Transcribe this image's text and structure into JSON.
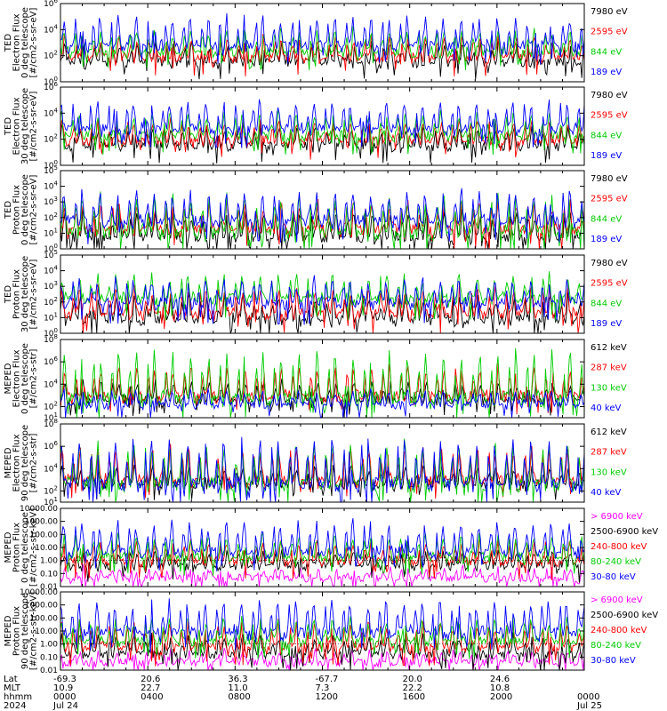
{
  "chart_data": [
    {
      "type": "line",
      "ylabel": [
        "TED",
        "Electron Flux",
        "0 deg telescope",
        "[#/cm2-s-sr-eV]"
      ],
      "yscale": "log",
      "ylim": [
        1,
        1000000
      ],
      "yticks": [
        "10^0",
        "10^2",
        "10^4",
        "10^6"
      ],
      "series": [
        {
          "name": "7980 eV",
          "color": "#000000",
          "base": 20,
          "peak": 1000
        },
        {
          "name": "2595 eV",
          "color": "#ff0000",
          "base": 40,
          "peak": 3000
        },
        {
          "name": "844 eV",
          "color": "#00cc00",
          "base": 100,
          "peak": 10000
        },
        {
          "name": "189 eV",
          "color": "#0000ff",
          "base": 300,
          "peak": 100000
        }
      ]
    },
    {
      "type": "line",
      "ylabel": [
        "TED",
        "Electron Flux",
        "30 deg telescope",
        "[#/cm2-s-sr-eV]"
      ],
      "yscale": "log",
      "ylim": [
        1,
        1000000
      ],
      "yticks": [
        "10^0",
        "10^2",
        "10^4",
        "10^6"
      ],
      "series": [
        {
          "name": "7980 eV",
          "color": "#000000",
          "base": 20,
          "peak": 1000
        },
        {
          "name": "2595 eV",
          "color": "#ff0000",
          "base": 40,
          "peak": 3000
        },
        {
          "name": "844 eV",
          "color": "#00cc00",
          "base": 100,
          "peak": 10000
        },
        {
          "name": "189 eV",
          "color": "#0000ff",
          "base": 300,
          "peak": 100000
        }
      ]
    },
    {
      "type": "line",
      "ylabel": [
        "TED",
        "Proton Flux",
        "0 deg telescope",
        "[#/cm2-s-sr-eV]"
      ],
      "yscale": "log",
      "ylim": [
        1,
        100000
      ],
      "yticks": [
        "10^0",
        "10^1",
        "10^2",
        "10^3",
        "10^4",
        "10^5"
      ],
      "series": [
        {
          "name": "7980 eV",
          "color": "#000000",
          "base": 3,
          "peak": 300
        },
        {
          "name": "2595 eV",
          "color": "#ff0000",
          "base": 10,
          "peak": 1000
        },
        {
          "name": "844 eV",
          "color": "#00cc00",
          "base": 5,
          "peak": 3000
        },
        {
          "name": "189 eV",
          "color": "#0000ff",
          "base": 30,
          "peak": 5000
        }
      ]
    },
    {
      "type": "line",
      "ylabel": [
        "TED",
        "Proton Flux",
        "30 deg telescope",
        "[#/cm2-s-sr-eV]"
      ],
      "yscale": "log",
      "ylim": [
        1,
        100000
      ],
      "yticks": [
        "10^0",
        "10^1",
        "10^2",
        "10^3",
        "10^4",
        "10^5"
      ],
      "series": [
        {
          "name": "7980 eV",
          "color": "#000000",
          "base": 5,
          "peak": 300
        },
        {
          "name": "2595 eV",
          "color": "#ff0000",
          "base": 10,
          "peak": 1000
        },
        {
          "name": "844 eV",
          "color": "#00cc00",
          "base": 100,
          "peak": 5000
        },
        {
          "name": "189 eV",
          "color": "#0000ff",
          "base": 50,
          "peak": 3000
        }
      ]
    },
    {
      "type": "line",
      "ylabel": [
        "MEPED",
        "Electron Flux",
        "0 deg telescope",
        "[#/cm2-s-str]"
      ],
      "yscale": "log",
      "ylim": [
        10,
        100000000
      ],
      "yticks": [
        "10^1",
        "10^2",
        "10^4",
        "10^6",
        "10^8"
      ],
      "series": [
        {
          "name": "612 keV",
          "color": "#000000",
          "base": 200,
          "peak": 20000
        },
        {
          "name": "287 keV",
          "color": "#ff0000",
          "base": 300,
          "peak": 500000
        },
        {
          "name": "130 keV",
          "color": "#00cc00",
          "base": 100,
          "peak": 10000000
        },
        {
          "name": "40 keV",
          "color": "#0000ff",
          "base": 100,
          "peak": 3000
        }
      ]
    },
    {
      "type": "line",
      "ylabel": [
        "MEPED",
        "Electron Flux",
        "90 deg telescope",
        "[#/cm2-s-str]"
      ],
      "yscale": "log",
      "ylim": [
        10,
        100000000
      ],
      "yticks": [
        "10^1",
        "10^2",
        "10^4",
        "10^6",
        "10^8"
      ],
      "series": [
        {
          "name": "612 keV",
          "color": "#000000",
          "base": 200,
          "peak": 20000
        },
        {
          "name": "287 keV",
          "color": "#ff0000",
          "base": 300,
          "peak": 1000000
        },
        {
          "name": "130 keV",
          "color": "#00cc00",
          "base": 100,
          "peak": 3000000
        },
        {
          "name": "40 keV",
          "color": "#0000ff",
          "base": 100,
          "peak": 5000000
        }
      ]
    },
    {
      "type": "line",
      "ylabel": [
        "MEPED",
        "Proton Flux",
        "0 deg telescope",
        "[#/cm2-s-str-keV]"
      ],
      "yscale": "log",
      "ylim": [
        0.01,
        10000
      ],
      "yticks": [
        "0.01",
        "0.10",
        "1.00",
        "10.00",
        "100.00",
        "1000.00",
        "10000.00"
      ],
      "series": [
        {
          "name": "> 6900 keV",
          "color": "#ff00ff",
          "base": 0.03,
          "peak": 0.3
        },
        {
          "name": "2500-6900 keV",
          "color": "#000000",
          "base": 0.3,
          "peak": 5
        },
        {
          "name": "240-800 keV",
          "color": "#ff0000",
          "base": 0.5,
          "peak": 30
        },
        {
          "name": "80-240 keV",
          "color": "#00cc00",
          "base": 1,
          "peak": 100
        },
        {
          "name": "30-80 keV",
          "color": "#0000ff",
          "base": 2,
          "peak": 1000
        }
      ]
    },
    {
      "type": "line",
      "ylabel": [
        "MEPED",
        "Proton Flux",
        "90 deg telescope",
        "[#/cm2-s-str-keV]"
      ],
      "yscale": "log",
      "ylim": [
        0.01,
        10000
      ],
      "yticks": [
        "0.01",
        "0.10",
        "1.00",
        "10.00",
        "100.00",
        "1000.00",
        "10000.00"
      ],
      "series": [
        {
          "name": "> 6900 keV",
          "color": "#ff00ff",
          "base": 0.03,
          "peak": 0.3
        },
        {
          "name": "2500-6900 keV",
          "color": "#000000",
          "base": 0.1,
          "peak": 5
        },
        {
          "name": "240-800 keV",
          "color": "#ff0000",
          "base": 0.3,
          "peak": 50
        },
        {
          "name": "80-240 keV",
          "color": "#00cc00",
          "base": 1,
          "peak": 100
        },
        {
          "name": "30-80 keV",
          "color": "#0000ff",
          "base": 3,
          "peak": 3000
        }
      ]
    }
  ],
  "footer": {
    "row_labels": [
      "Lat",
      "MLT",
      "hhmm",
      "2024"
    ],
    "columns": [
      {
        "lat": "-69.3",
        "mlt": "10.9",
        "hhmm": "0000",
        "date": "Jul 24"
      },
      {
        "lat": "20.6",
        "mlt": "22.7",
        "hhmm": "0400",
        "date": ""
      },
      {
        "lat": "36.3",
        "mlt": "11.0",
        "hhmm": "0800",
        "date": ""
      },
      {
        "lat": "-67.7",
        "mlt": "7.3",
        "hhmm": "1200",
        "date": ""
      },
      {
        "lat": "20.0",
        "mlt": "22.2",
        "hhmm": "1600",
        "date": ""
      },
      {
        "lat": "24.6",
        "mlt": "10.8",
        "hhmm": "2000",
        "date": ""
      },
      {
        "lat": "",
        "mlt": "",
        "hhmm": "0000",
        "date": "Jul 25"
      }
    ]
  }
}
